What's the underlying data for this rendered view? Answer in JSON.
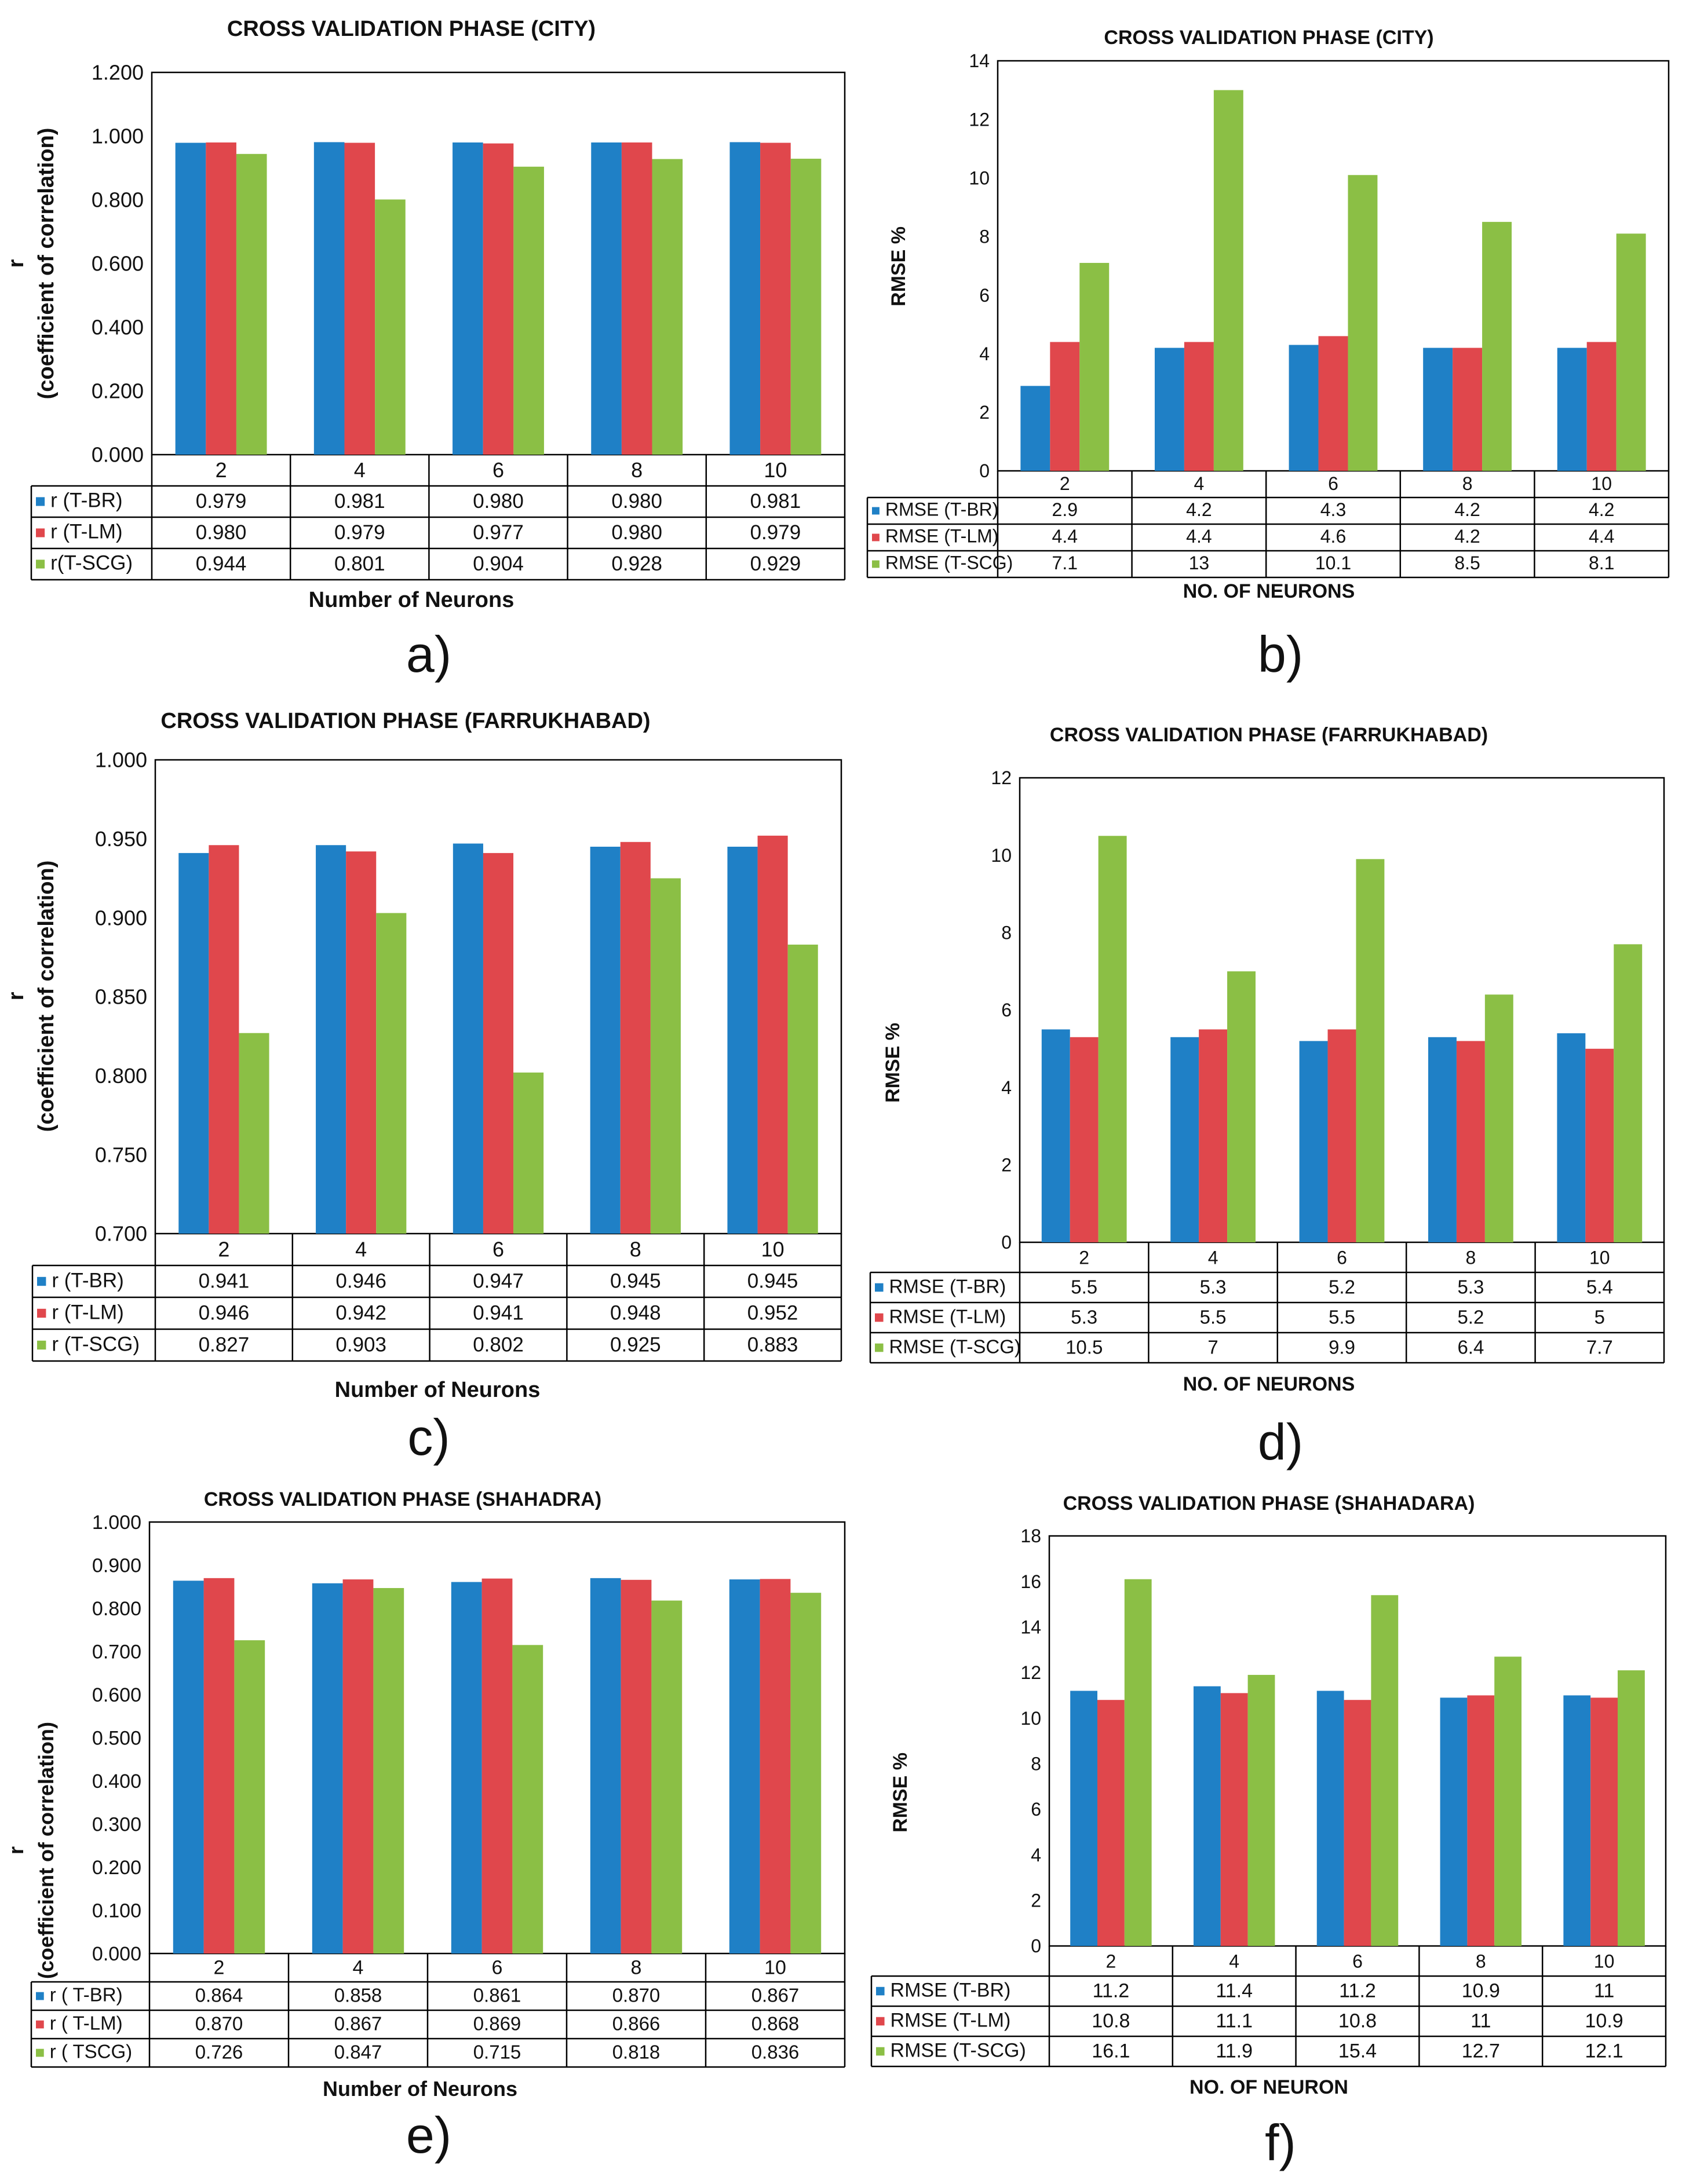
{
  "colors": {
    "t_br": "#1f80c6",
    "t_lm": "#e0474c",
    "t_scg": "#8bbf45"
  },
  "chart_data": [
    {
      "type": "bar",
      "panel_label": "a)",
      "title": "CROSS VALIDATION PHASE (CITY)",
      "xlabel": "Number of Neurons",
      "ylabel_main": "r",
      "ylabel_sub": "(coefficient of correlation)",
      "categories": [
        "2",
        "4",
        "6",
        "8",
        "10"
      ],
      "ylim": [
        0,
        1.2
      ],
      "yticks": [
        "0.000",
        "0.200",
        "0.400",
        "0.600",
        "0.800",
        "1.000",
        "1.200"
      ],
      "series": [
        {
          "name": "r (T-BR)",
          "values": [
            "0.979",
            "0.981",
            "0.980",
            "0.980",
            "0.981"
          ]
        },
        {
          "name": "r (T-LM)",
          "values": [
            "0.980",
            "0.979",
            "0.977",
            "0.980",
            "0.979"
          ]
        },
        {
          "name": "r(T-SCG)",
          "values": [
            "0.944",
            "0.801",
            "0.904",
            "0.928",
            "0.929"
          ]
        }
      ]
    },
    {
      "type": "bar",
      "panel_label": "b)",
      "title": "CROSS VALIDATION PHASE (CITY)",
      "xlabel": "NO. OF NEURONS",
      "ylabel_main": "RMSE %",
      "ylabel_sub": "",
      "categories": [
        "2",
        "4",
        "6",
        "8",
        "10"
      ],
      "ylim": [
        0,
        14
      ],
      "yticks": [
        "0",
        "2",
        "4",
        "6",
        "8",
        "10",
        "12",
        "14"
      ],
      "series": [
        {
          "name": "RMSE (T-BR)",
          "values": [
            "2.9",
            "4.2",
            "4.3",
            "4.2",
            "4.2"
          ]
        },
        {
          "name": "RMSE (T-LM)",
          "values": [
            "4.4",
            "4.4",
            "4.6",
            "4.2",
            "4.4"
          ]
        },
        {
          "name": "RMSE (T-SCG)",
          "values": [
            "7.1",
            "13",
            "10.1",
            "8.5",
            "8.1"
          ]
        }
      ]
    },
    {
      "type": "bar",
      "panel_label": "c)",
      "title": "CROSS VALIDATION PHASE (FARRUKHABAD)",
      "xlabel": "Number of Neurons",
      "ylabel_main": "r",
      "ylabel_sub": "(coefficient of correlation)",
      "categories": [
        "2",
        "4",
        "6",
        "8",
        "10"
      ],
      "ylim": [
        0.7,
        1.0
      ],
      "yticks": [
        "0.700",
        "0.750",
        "0.800",
        "0.850",
        "0.900",
        "0.950",
        "1.000"
      ],
      "series": [
        {
          "name": "r (T-BR)",
          "values": [
            "0.941",
            "0.946",
            "0.947",
            "0.945",
            "0.945"
          ]
        },
        {
          "name": "r (T-LM)",
          "values": [
            "0.946",
            "0.942",
            "0.941",
            "0.948",
            "0.952"
          ]
        },
        {
          "name": "r (T-SCG)",
          "values": [
            "0.827",
            "0.903",
            "0.802",
            "0.925",
            "0.883"
          ]
        }
      ]
    },
    {
      "type": "bar",
      "panel_label": "d)",
      "title": "CROSS VALIDATION PHASE (FARRUKHABAD)",
      "xlabel": "NO. OF NEURONS",
      "ylabel_main": "RMSE %",
      "ylabel_sub": "",
      "categories": [
        "2",
        "4",
        "6",
        "8",
        "10"
      ],
      "ylim": [
        0,
        12
      ],
      "yticks": [
        "0",
        "2",
        "4",
        "6",
        "8",
        "10",
        "12"
      ],
      "series": [
        {
          "name": "RMSE (T-BR)",
          "values": [
            "5.5",
            "5.3",
            "5.2",
            "5.3",
            "5.4"
          ]
        },
        {
          "name": "RMSE (T-LM)",
          "values": [
            "5.3",
            "5.5",
            "5.5",
            "5.2",
            "5"
          ]
        },
        {
          "name": "RMSE (T-SCG)",
          "values": [
            "10.5",
            "7",
            "9.9",
            "6.4",
            "7.7"
          ]
        }
      ]
    },
    {
      "type": "bar",
      "panel_label": "e)",
      "title": "CROSS VALIDATION PHASE (SHAHADRA)",
      "xlabel": "Number of Neurons",
      "ylabel_main": "r",
      "ylabel_sub": "(coefficient of correlation)",
      "categories": [
        "2",
        "4",
        "6",
        "8",
        "10"
      ],
      "ylim": [
        0,
        1.0
      ],
      "yticks": [
        "0.000",
        "0.100",
        "0.200",
        "0.300",
        "0.400",
        "0.500",
        "0.600",
        "0.700",
        "0.800",
        "0.900",
        "1.000"
      ],
      "series": [
        {
          "name": "r ( T-BR)",
          "values": [
            "0.864",
            "0.858",
            "0.861",
            "0.870",
            "0.867"
          ]
        },
        {
          "name": "r ( T-LM)",
          "values": [
            "0.870",
            "0.867",
            "0.869",
            "0.866",
            "0.868"
          ]
        },
        {
          "name": "r ( TSCG)",
          "values": [
            "0.726",
            "0.847",
            "0.715",
            "0.818",
            "0.836"
          ]
        }
      ]
    },
    {
      "type": "bar",
      "panel_label": "f)",
      "title": "CROSS VALIDATION PHASE (SHAHADARA)",
      "xlabel": "NO. OF NEURON",
      "ylabel_main": "RMSE %",
      "ylabel_sub": "",
      "categories": [
        "2",
        "4",
        "6",
        "8",
        "10"
      ],
      "ylim": [
        0,
        18
      ],
      "yticks": [
        "0",
        "2",
        "4",
        "6",
        "8",
        "10",
        "12",
        "14",
        "16",
        "18"
      ],
      "series": [
        {
          "name": "RMSE (T-BR)",
          "values": [
            "11.2",
            "11.4",
            "11.2",
            "10.9",
            "11"
          ]
        },
        {
          "name": "RMSE (T-LM)",
          "values": [
            "10.8",
            "11.1",
            "10.8",
            "11",
            "10.9"
          ]
        },
        {
          "name": "RMSE (T-SCG)",
          "values": [
            "16.1",
            "11.9",
            "15.4",
            "12.7",
            "12.1"
          ]
        }
      ]
    }
  ]
}
